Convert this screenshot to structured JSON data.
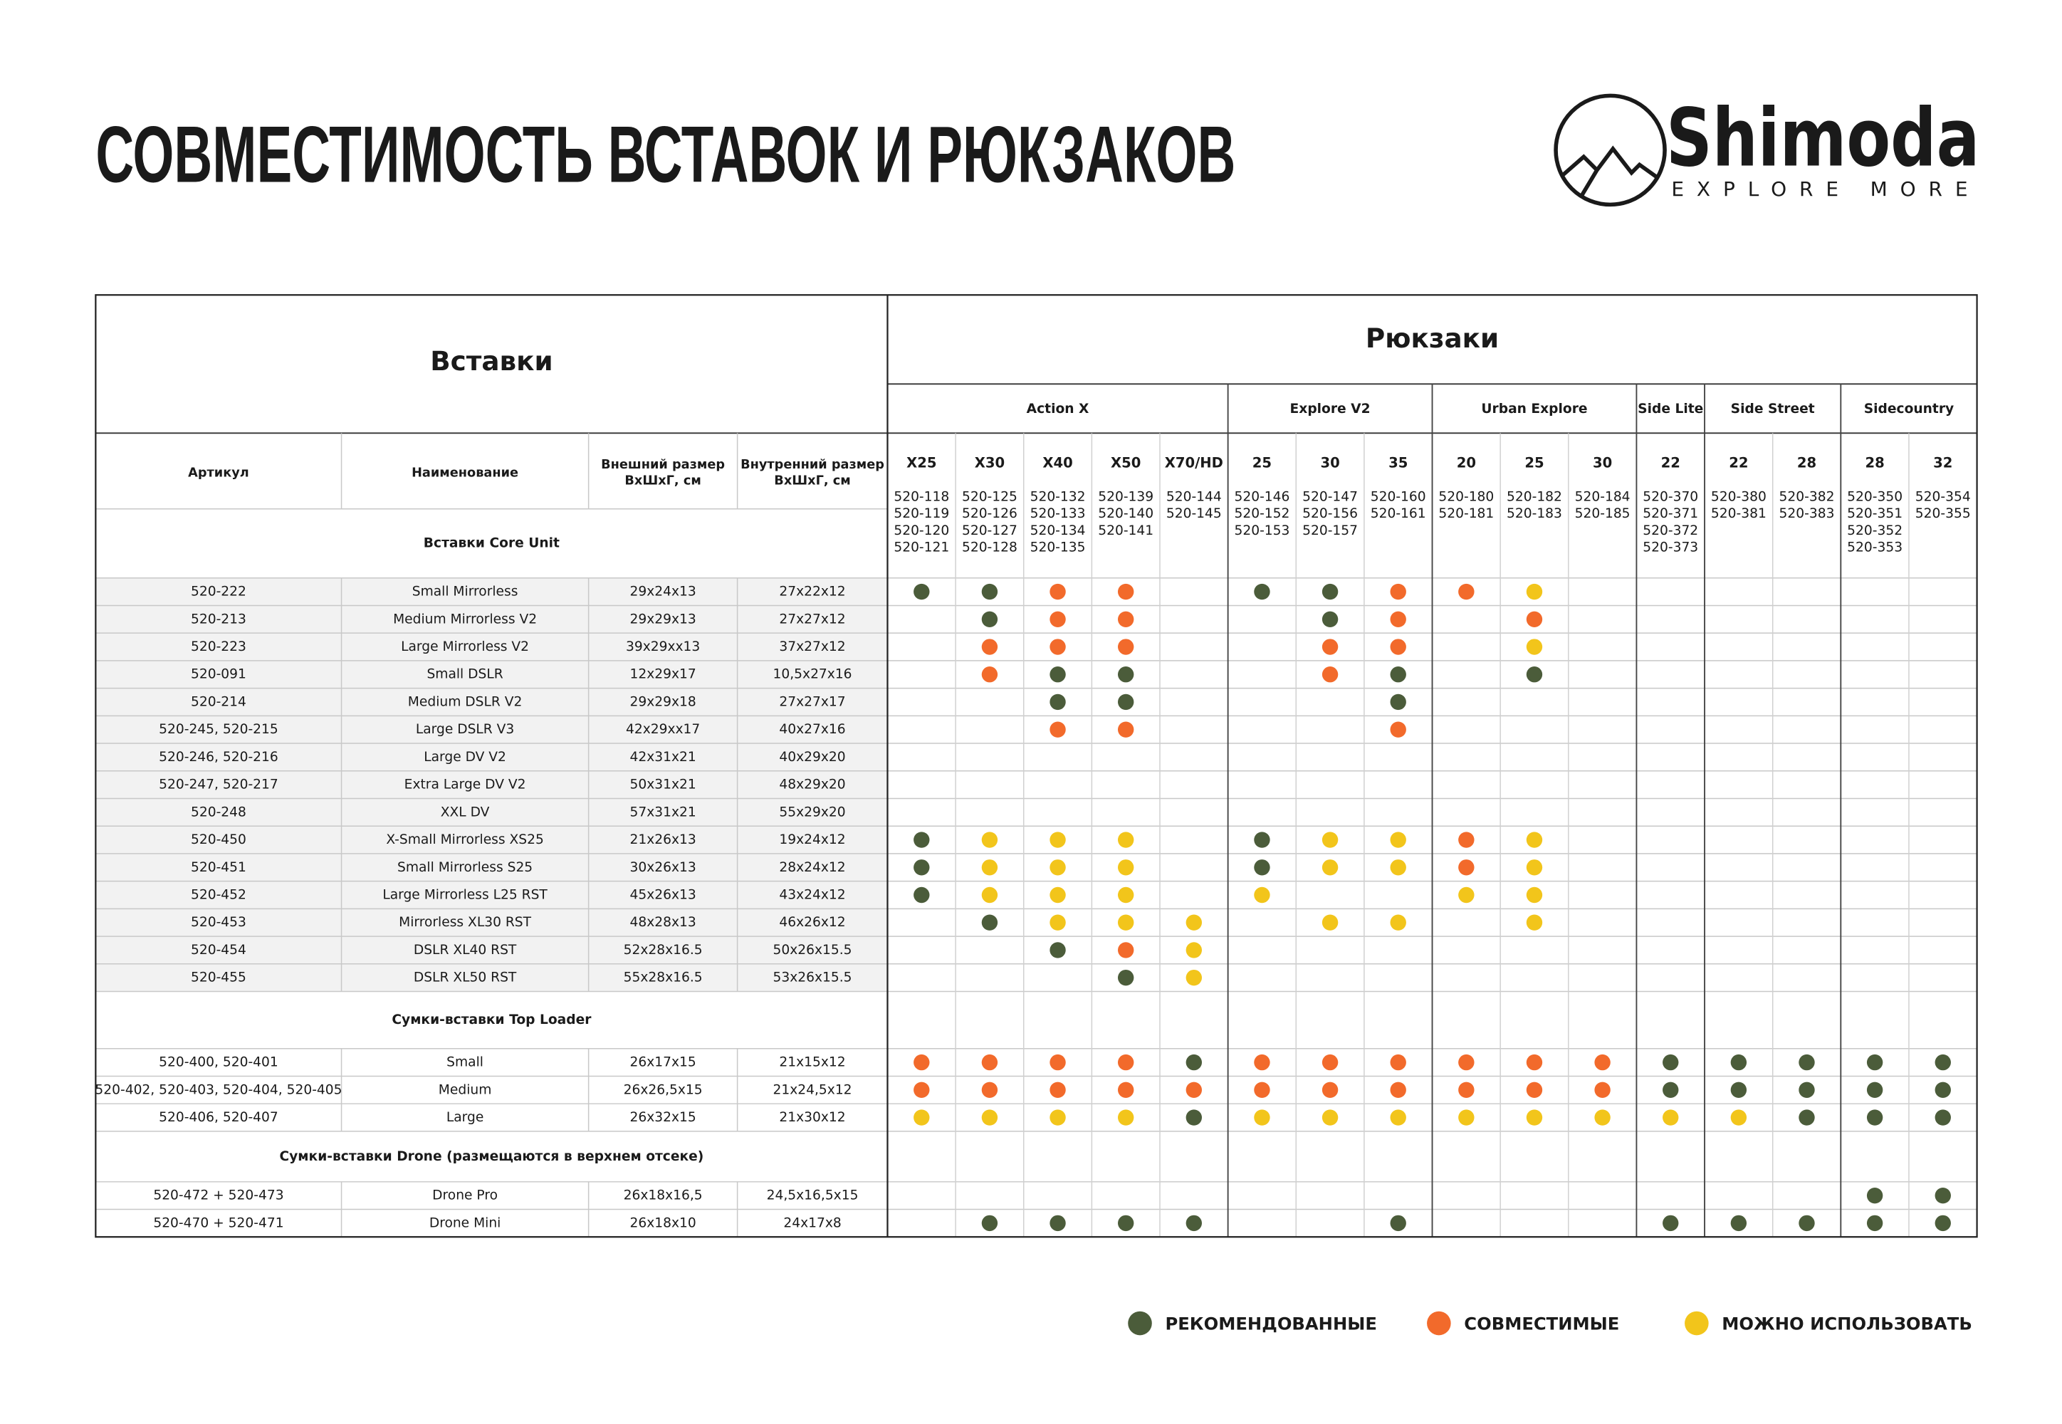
{
  "header": {
    "title": "СОВМЕСТИМОСТЬ ВСТАВОК И РЮКЗАКОВ",
    "logo": {
      "name": "Shimoda",
      "tagline": "EXPLORE MORE"
    }
  },
  "table": {
    "inserts_title": "Вставки",
    "backpacks_title": "Рюкзаки",
    "columns": [
      [
        "Артикул"
      ],
      [
        "Наименование"
      ],
      [
        "Внешний размер",
        "ВхШхГ, см"
      ],
      [
        "Внутренний размер",
        "ВхШхГ, см"
      ]
    ],
    "groups": [
      {
        "name": "Action X",
        "models": [
          {
            "name": "X25",
            "codes": [
              "520-118",
              "520-119",
              "520-120",
              "520-121"
            ]
          },
          {
            "name": "X30",
            "codes": [
              "520-125",
              "520-126",
              "520-127",
              "520-128"
            ]
          },
          {
            "name": "X40",
            "codes": [
              "520-132",
              "520-133",
              "520-134",
              "520-135"
            ]
          },
          {
            "name": "X50",
            "codes": [
              "520-139",
              "520-140",
              "520-141"
            ]
          },
          {
            "name": "X70/HD",
            "codes": [
              "520-144",
              "520-145"
            ]
          }
        ]
      },
      {
        "name": "Explore V2",
        "models": [
          {
            "name": "25",
            "codes": [
              "520-146",
              "520-152",
              "520-153"
            ]
          },
          {
            "name": "30",
            "codes": [
              "520-147",
              "520-156",
              "520-157"
            ]
          },
          {
            "name": "35",
            "codes": [
              "520-160",
              "520-161"
            ]
          }
        ]
      },
      {
        "name": "Urban Explore",
        "models": [
          {
            "name": "20",
            "codes": [
              "520-180",
              "520-181"
            ]
          },
          {
            "name": "25",
            "codes": [
              "520-182",
              "520-183"
            ]
          },
          {
            "name": "30",
            "codes": [
              "520-184",
              "520-185"
            ]
          }
        ]
      },
      {
        "name": "Side Lite",
        "models": [
          {
            "name": "22",
            "codes": [
              "520-370",
              "520-371",
              "520-372",
              "520-373"
            ]
          }
        ]
      },
      {
        "name": "Side Street",
        "models": [
          {
            "name": "22",
            "codes": [
              "520-380",
              "520-381"
            ]
          },
          {
            "name": "28",
            "codes": [
              "520-382",
              "520-383"
            ]
          }
        ]
      },
      {
        "name": "Sidecountry",
        "models": [
          {
            "name": "28",
            "codes": [
              "520-350",
              "520-351",
              "520-352",
              "520-353"
            ]
          },
          {
            "name": "32",
            "codes": [
              "520-354",
              "520-355"
            ]
          }
        ]
      }
    ],
    "sections": [
      {
        "title": "Вставки Core Unit",
        "rows": [
          {
            "cells": [
              "520-222",
              "Small Mirrorless",
              "29x24x13",
              "27x22x12"
            ],
            "fit": [
              0,
              0,
              1,
              1,
              null,
              0,
              0,
              1,
              1,
              2,
              null,
              null,
              null,
              null,
              null,
              null
            ]
          },
          {
            "cells": [
              "520-213",
              "Medium Mirrorless V2",
              "29x29x13",
              "27x27x12"
            ],
            "fit": [
              null,
              0,
              1,
              1,
              null,
              null,
              0,
              1,
              null,
              1,
              null,
              null,
              null,
              null,
              null,
              null
            ]
          },
          {
            "cells": [
              "520-223",
              "Large Mirrorless V2",
              "39x29xx13",
              "37x27x12"
            ],
            "fit": [
              null,
              1,
              1,
              1,
              null,
              null,
              1,
              1,
              null,
              2,
              null,
              null,
              null,
              null,
              null,
              null
            ]
          },
          {
            "cells": [
              "520-091",
              "Small DSLR",
              "12x29x17",
              "10,5x27x16"
            ],
            "fit": [
              null,
              1,
              0,
              0,
              null,
              null,
              1,
              0,
              null,
              0,
              null,
              null,
              null,
              null,
              null,
              null
            ]
          },
          {
            "cells": [
              "520-214",
              "Medium DSLR V2",
              "29x29x18",
              "27x27x17"
            ],
            "fit": [
              null,
              null,
              0,
              0,
              null,
              null,
              null,
              0,
              null,
              null,
              null,
              null,
              null,
              null,
              null,
              null
            ]
          },
          {
            "cells": [
              "520-245, 520-215",
              "Large DSLR V3",
              "42x29xx17",
              "40x27x16"
            ],
            "fit": [
              null,
              null,
              1,
              1,
              null,
              null,
              null,
              1,
              null,
              null,
              null,
              null,
              null,
              null,
              null,
              null
            ]
          },
          {
            "cells": [
              "520-246, 520-216",
              "Large DV V2",
              "42x31x21",
              "40x29x20"
            ],
            "fit": [
              null,
              null,
              null,
              null,
              null,
              null,
              null,
              null,
              null,
              null,
              null,
              null,
              null,
              null,
              null,
              null
            ]
          },
          {
            "cells": [
              "520-247, 520-217",
              "Extra Large DV V2",
              "50x31x21",
              "48x29x20"
            ],
            "fit": [
              null,
              null,
              null,
              null,
              null,
              null,
              null,
              null,
              null,
              null,
              null,
              null,
              null,
              null,
              null,
              null
            ]
          },
          {
            "cells": [
              "520-248",
              "XXL DV",
              "57x31x21",
              "55x29x20"
            ],
            "fit": [
              null,
              null,
              null,
              null,
              null,
              null,
              null,
              null,
              null,
              null,
              null,
              null,
              null,
              null,
              null,
              null
            ]
          },
          {
            "cells": [
              "520-450",
              "X-Small Mirrorless XS25",
              "21x26x13",
              "19x24x12"
            ],
            "fit": [
              0,
              2,
              2,
              2,
              null,
              0,
              2,
              2,
              1,
              2,
              null,
              null,
              null,
              null,
              null,
              null
            ]
          },
          {
            "cells": [
              "520-451",
              "Small Mirrorless S25",
              "30x26x13",
              "28x24x12"
            ],
            "fit": [
              0,
              2,
              2,
              2,
              null,
              0,
              2,
              2,
              1,
              2,
              null,
              null,
              null,
              null,
              null,
              null
            ]
          },
          {
            "cells": [
              "520-452",
              "Large Mirrorless L25 RST",
              "45x26x13",
              "43x24x12"
            ],
            "fit": [
              0,
              2,
              2,
              2,
              null,
              2,
              null,
              null,
              2,
              2,
              null,
              null,
              null,
              null,
              null,
              null
            ]
          },
          {
            "cells": [
              "520-453",
              "Mirrorless XL30 RST",
              "48x28x13",
              "46x26x12"
            ],
            "fit": [
              null,
              0,
              2,
              2,
              2,
              null,
              2,
              2,
              null,
              2,
              null,
              null,
              null,
              null,
              null,
              null
            ]
          },
          {
            "cells": [
              "520-454",
              "DSLR XL40 RST",
              "52x28x16.5",
              "50x26x15.5"
            ],
            "fit": [
              null,
              null,
              0,
              1,
              2,
              null,
              null,
              null,
              null,
              null,
              null,
              null,
              null,
              null,
              null,
              null
            ]
          },
          {
            "cells": [
              "520-455",
              "DSLR XL50 RST",
              "55x28x16.5",
              "53x26x15.5"
            ],
            "fit": [
              null,
              null,
              null,
              0,
              2,
              null,
              null,
              null,
              null,
              null,
              null,
              null,
              null,
              null,
              null,
              null
            ]
          }
        ]
      },
      {
        "title": "Сумки-вставки Top Loader",
        "rows": [
          {
            "cells": [
              "520-400, 520-401",
              "Small",
              "26x17x15",
              "21x15x12"
            ],
            "fit": [
              1,
              1,
              1,
              1,
              0,
              1,
              1,
              1,
              1,
              1,
              1,
              0,
              0,
              0,
              0,
              0
            ]
          },
          {
            "cells": [
              "520-402, 520-403, 520-404, 520-405",
              "Medium",
              "26x26,5x15",
              "21x24,5x12"
            ],
            "fit": [
              1,
              1,
              1,
              1,
              1,
              1,
              1,
              1,
              1,
              1,
              1,
              0,
              0,
              0,
              0,
              0
            ]
          },
          {
            "cells": [
              "520-406, 520-407",
              "Large",
              "26x32x15",
              "21x30x12"
            ],
            "fit": [
              2,
              2,
              2,
              2,
              0,
              2,
              2,
              2,
              2,
              2,
              2,
              2,
              2,
              0,
              0,
              0
            ]
          }
        ]
      },
      {
        "title": "Сумки-вставки Drone (размещаются в верхнем отсеке)",
        "rows": [
          {
            "cells": [
              "520-472 + 520-473",
              "Drone Pro",
              "26x18x16,5",
              "24,5x16,5x15"
            ],
            "fit": [
              null,
              null,
              null,
              null,
              null,
              null,
              null,
              null,
              null,
              null,
              null,
              null,
              null,
              null,
              0,
              0
            ]
          },
          {
            "cells": [
              "520-470 + 520-471",
              "Drone Mini",
              "26x18x10",
              "24x17x8"
            ],
            "fit": [
              null,
              0,
              0,
              0,
              0,
              null,
              null,
              0,
              null,
              null,
              null,
              0,
              0,
              0,
              0,
              0
            ]
          }
        ]
      }
    ]
  },
  "legend": [
    {
      "label": "РЕКОМЕНДОВАННЫЕ",
      "color": "#4b5c3a"
    },
    {
      "label": "СОВМЕСТИМЫЕ",
      "color": "#f26a2b"
    },
    {
      "label": "МОЖНО ИСПОЛЬЗОВАТЬ",
      "color": "#f2c51b"
    }
  ]
}
